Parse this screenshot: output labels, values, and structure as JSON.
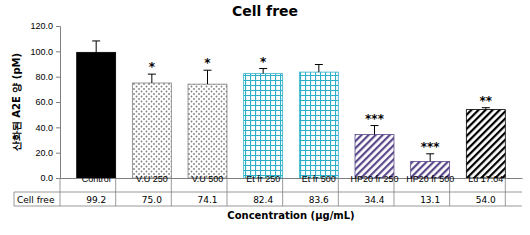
{
  "chart_data": {
    "type": "bar",
    "title": "Cell free",
    "y_label": "산화된 A2E 양 (pM)",
    "x_label": "Concentration (μg/mL)",
    "categories": [
      "Control",
      "V.U 250",
      "V.U 500",
      "Et fr 250",
      "Et fr 500",
      "HP20 fr 250",
      "HP20 fr 500",
      "Lu 17.04"
    ],
    "series": [
      {
        "name": "Cell free",
        "values": [
          99.2,
          75.0,
          74.1,
          82.4,
          83.6,
          34.4,
          13.1,
          54.0
        ],
        "value_labels": [
          "99.2",
          "75.0",
          "74.1",
          "82.4",
          "83.6",
          "34.4",
          "13.1",
          "54.0"
        ],
        "errors": [
          9,
          7,
          11,
          4,
          6,
          7,
          6,
          1.5
        ],
        "significance": [
          null,
          "*",
          "*",
          "*",
          null,
          "***",
          "***",
          "**"
        ],
        "colors": [
          "#000000",
          "#7f7f7f",
          "#7f7f7f",
          "#2fb0c8",
          "#2fb0c8",
          "#5b4a8a",
          "#5b4a8a",
          "#000000"
        ]
      }
    ],
    "ylim": [
      0,
      120
    ],
    "yticks": [
      {
        "value": 0,
        "label": "0.0"
      },
      {
        "value": 20,
        "label": "20.0"
      },
      {
        "value": 40,
        "label": "40.0"
      },
      {
        "value": 60,
        "label": "60.0"
      },
      {
        "value": 80,
        "label": "80.0"
      },
      {
        "value": 100,
        "label": "100.0"
      },
      {
        "value": 120,
        "label": "120.0"
      }
    ],
    "grid": false,
    "data_labels": true
  }
}
